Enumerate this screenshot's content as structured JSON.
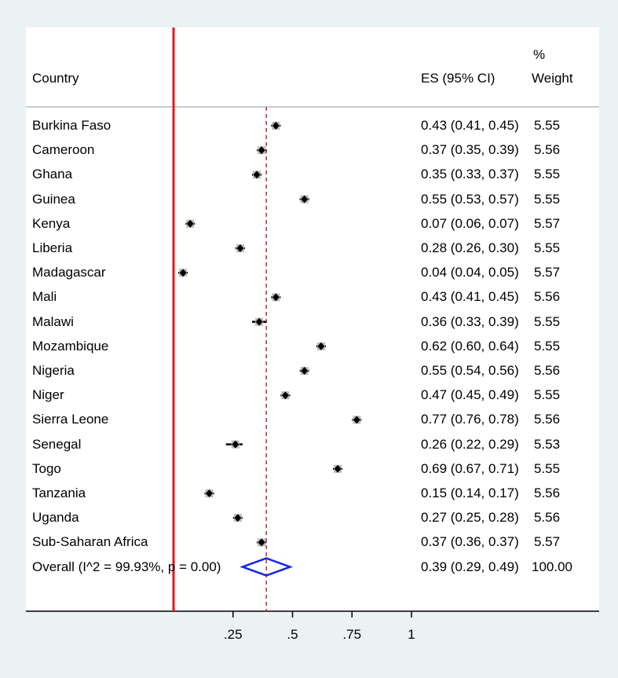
{
  "headers": {
    "country": "Country",
    "es": "ES (95% CI)",
    "weight_top": "%",
    "weight_bottom": "Weight"
  },
  "chart_data": {
    "type": "forest",
    "x_ticks": [
      {
        "value": 0.25,
        "label": ".25"
      },
      {
        "value": 0.5,
        "label": ".5"
      },
      {
        "value": 0.75,
        "label": ".75"
      },
      {
        "value": 1,
        "label": "1"
      }
    ],
    "null_line": 0,
    "pooled_line": 0.39,
    "studies": [
      {
        "label": "Burkina Faso",
        "es": 0.43,
        "lo": 0.41,
        "hi": 0.45,
        "es_text": "0.43 (0.41, 0.45)",
        "weight": "5.55"
      },
      {
        "label": "Cameroon",
        "es": 0.37,
        "lo": 0.35,
        "hi": 0.39,
        "es_text": "0.37 (0.35, 0.39)",
        "weight": "5.56"
      },
      {
        "label": "Ghana",
        "es": 0.35,
        "lo": 0.33,
        "hi": 0.37,
        "es_text": "0.35 (0.33, 0.37)",
        "weight": "5.55"
      },
      {
        "label": "Guinea",
        "es": 0.55,
        "lo": 0.53,
        "hi": 0.57,
        "es_text": "0.55 (0.53, 0.57)",
        "weight": "5.55"
      },
      {
        "label": "Kenya",
        "es": 0.07,
        "lo": 0.06,
        "hi": 0.07,
        "es_text": "0.07 (0.06, 0.07)",
        "weight": "5.57"
      },
      {
        "label": "Liberia",
        "es": 0.28,
        "lo": 0.26,
        "hi": 0.3,
        "es_text": "0.28 (0.26, 0.30)",
        "weight": "5.55"
      },
      {
        "label": "Madagascar",
        "es": 0.04,
        "lo": 0.04,
        "hi": 0.05,
        "es_text": "0.04 (0.04, 0.05)",
        "weight": "5.57"
      },
      {
        "label": "Mali",
        "es": 0.43,
        "lo": 0.41,
        "hi": 0.45,
        "es_text": "0.43 (0.41, 0.45)",
        "weight": "5.56"
      },
      {
        "label": "Malawi",
        "es": 0.36,
        "lo": 0.33,
        "hi": 0.39,
        "es_text": "0.36 (0.33, 0.39)",
        "weight": "5.55"
      },
      {
        "label": "Mozambique",
        "es": 0.62,
        "lo": 0.6,
        "hi": 0.64,
        "es_text": "0.62 (0.60, 0.64)",
        "weight": "5.55"
      },
      {
        "label": "Nigeria",
        "es": 0.55,
        "lo": 0.54,
        "hi": 0.56,
        "es_text": "0.55 (0.54, 0.56)",
        "weight": "5.56"
      },
      {
        "label": "Niger",
        "es": 0.47,
        "lo": 0.45,
        "hi": 0.49,
        "es_text": "0.47 (0.45, 0.49)",
        "weight": "5.55"
      },
      {
        "label": "Sierra Leone",
        "es": 0.77,
        "lo": 0.76,
        "hi": 0.78,
        "es_text": "0.77 (0.76, 0.78)",
        "weight": "5.56"
      },
      {
        "label": "Senegal",
        "es": 0.26,
        "lo": 0.22,
        "hi": 0.29,
        "es_text": "0.26 (0.22, 0.29)",
        "weight": "5.53"
      },
      {
        "label": "Togo",
        "es": 0.69,
        "lo": 0.67,
        "hi": 0.71,
        "es_text": "0.69 (0.67, 0.71)",
        "weight": "5.55"
      },
      {
        "label": "Tanzania",
        "es": 0.15,
        "lo": 0.14,
        "hi": 0.17,
        "es_text": "0.15 (0.14, 0.17)",
        "weight": "5.56"
      },
      {
        "label": "Uganda",
        "es": 0.27,
        "lo": 0.25,
        "hi": 0.28,
        "es_text": "0.27 (0.25, 0.28)",
        "weight": "5.56"
      },
      {
        "label": "Sub-Saharan Africa",
        "es": 0.37,
        "lo": 0.36,
        "hi": 0.37,
        "es_text": "0.37 (0.36, 0.37)",
        "weight": "5.57"
      }
    ],
    "overall": {
      "label": "Overall  (I^2 = 99.93%, p = 0.00)",
      "es": 0.39,
      "lo": 0.29,
      "hi": 0.49,
      "es_text": "0.39 (0.29, 0.49)",
      "weight": "100.00"
    },
    "colors": {
      "background": "#eaf2f3",
      "panel": "#ffffff",
      "null_line": "#e8141b",
      "pooled_line": "#9b3a3a",
      "diamond": "#1626e8",
      "marker": "#000000"
    }
  }
}
